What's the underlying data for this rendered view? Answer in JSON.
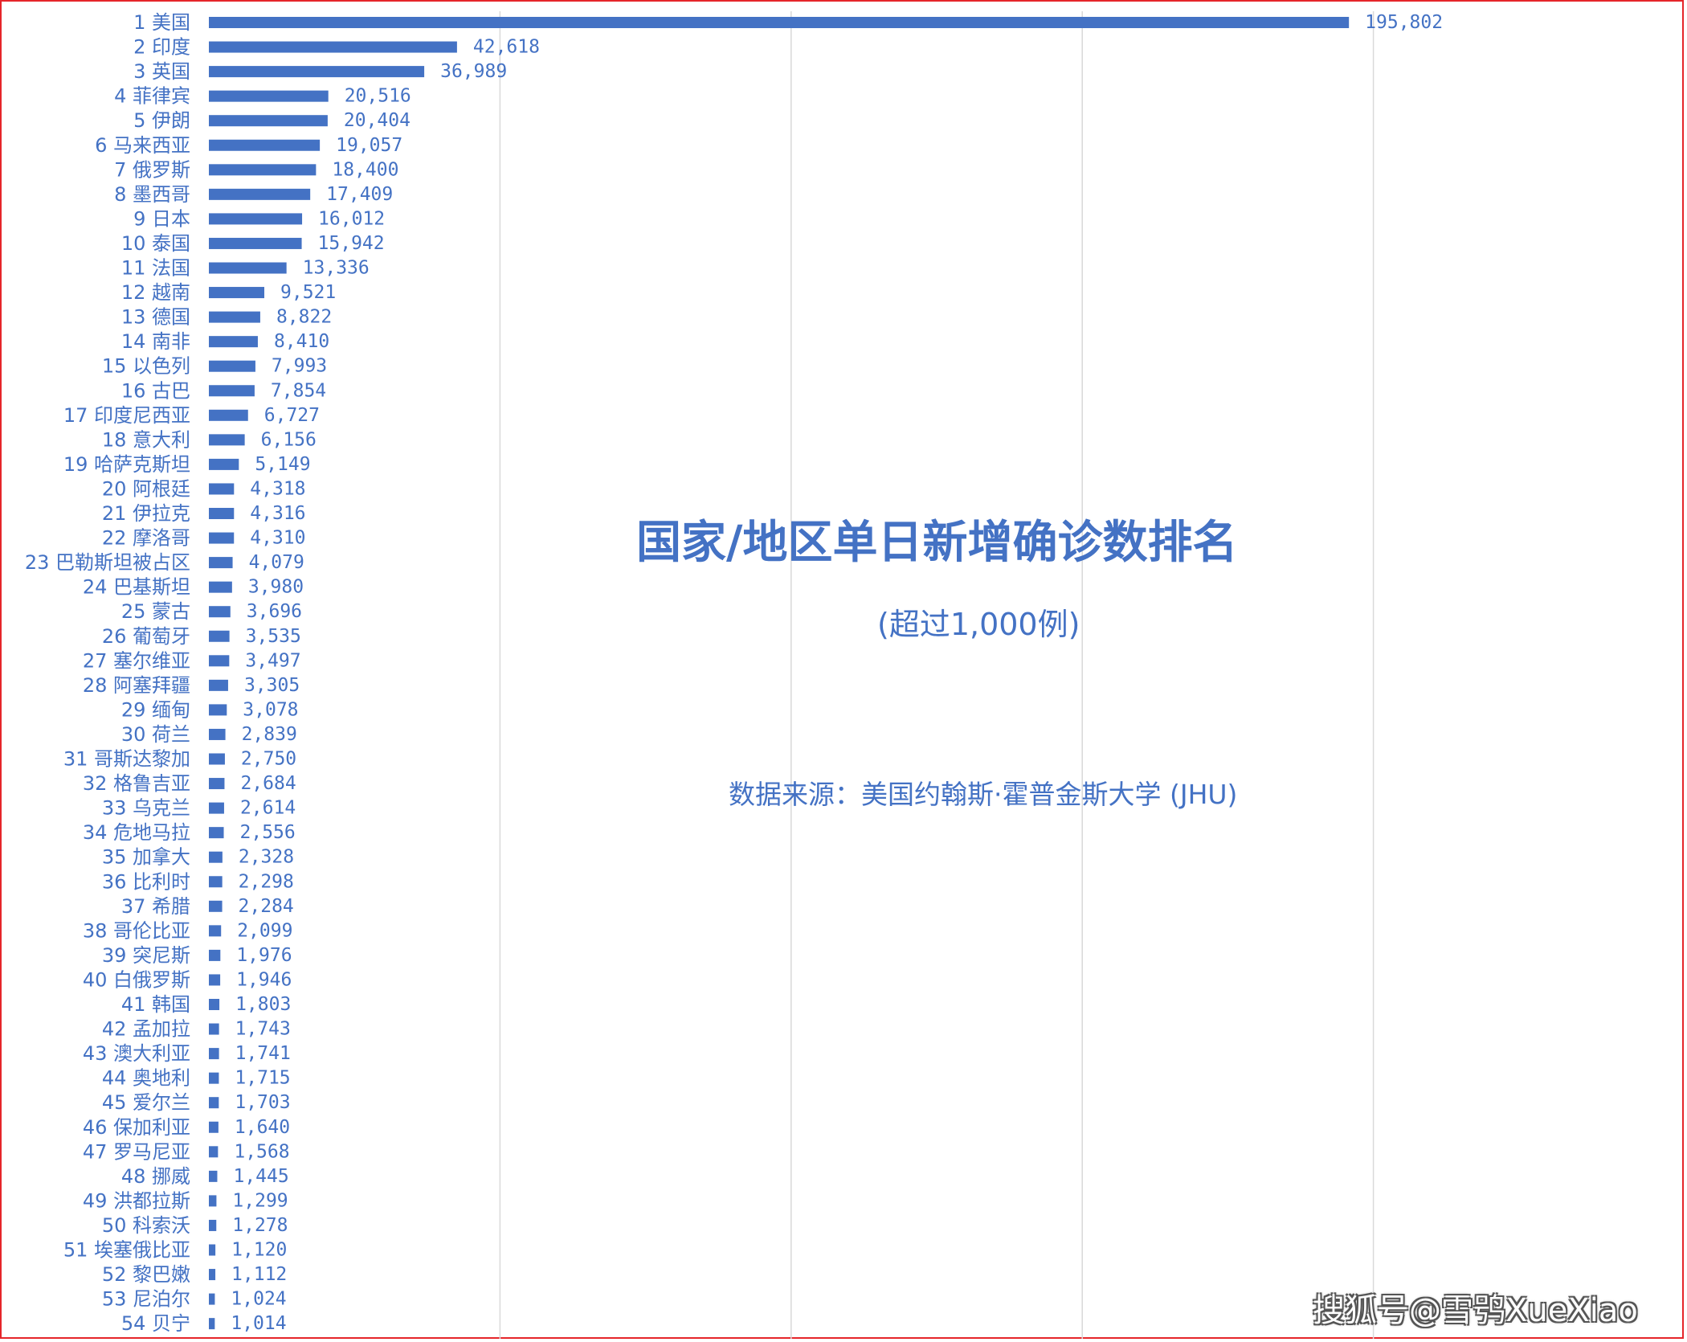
{
  "chart_data": {
    "type": "bar",
    "orientation": "horizontal",
    "title": "国家/地区单日新增确诊数排名",
    "subtitle": "(超过1,000例)",
    "source": "数据来源：美国约翰斯·霍普金斯大学 (JHU)",
    "xlim": [
      0,
      250000
    ],
    "gridlines_x": [
      50000,
      100000,
      150000,
      200000
    ],
    "grid": true,
    "legend": "none",
    "bar_color": "#4472c4",
    "label_color": "#4472c4",
    "categories": [
      "1 美国",
      "2 印度",
      "3 英国",
      "4 菲律宾",
      "5 伊朗",
      "6 马来西亚",
      "7 俄罗斯",
      "8 墨西哥",
      "9 日本",
      "10 泰国",
      "11 法国",
      "12 越南",
      "13 德国",
      "14 南非",
      "15 以色列",
      "16 古巴",
      "17 印度尼西亚",
      "18 意大利",
      "19 哈萨克斯坦",
      "20 阿根廷",
      "21 伊拉克",
      "22 摩洛哥",
      "23 巴勒斯坦被占区",
      "24 巴基斯坦",
      "25 蒙古",
      "26 葡萄牙",
      "27 塞尔维亚",
      "28 阿塞拜疆",
      "29 缅甸",
      "30 荷兰",
      "31 哥斯达黎加",
      "32 格鲁吉亚",
      "33 乌克兰",
      "34 危地马拉",
      "35 加拿大",
      "36 比利时",
      "37 希腊",
      "38 哥伦比亚",
      "39 突尼斯",
      "40 白俄罗斯",
      "41 韩国",
      "42 孟加拉",
      "43 澳大利亚",
      "44 奥地利",
      "45 爱尔兰",
      "46 保加利亚",
      "47 罗马尼亚",
      "48 挪威",
      "49 洪都拉斯",
      "50 科索沃",
      "51 埃塞俄比亚",
      "52 黎巴嫩",
      "53 尼泊尔",
      "54 贝宁"
    ],
    "values": [
      195802,
      42618,
      36989,
      20516,
      20404,
      19057,
      18400,
      17409,
      16012,
      15942,
      13336,
      9521,
      8822,
      8410,
      7993,
      7854,
      6727,
      6156,
      5149,
      4318,
      4316,
      4310,
      4079,
      3980,
      3696,
      3535,
      3497,
      3305,
      3078,
      2839,
      2750,
      2684,
      2614,
      2556,
      2328,
      2298,
      2284,
      2099,
      1976,
      1946,
      1803,
      1743,
      1741,
      1715,
      1703,
      1640,
      1568,
      1445,
      1299,
      1278,
      1120,
      1112,
      1024,
      1014
    ],
    "value_labels": [
      "195,802",
      "42,618",
      "36,989",
      "20,516",
      "20,404",
      "19,057",
      "18,400",
      "17,409",
      "16,012",
      "15,942",
      "13,336",
      "9,521",
      "8,822",
      "8,410",
      "7,993",
      "7,854",
      "6,727",
      "6,156",
      "5,149",
      "4,318",
      "4,316",
      "4,310",
      "4,079",
      "3,980",
      "3,696",
      "3,535",
      "3,497",
      "3,305",
      "3,078",
      "2,839",
      "2,750",
      "2,684",
      "2,614",
      "2,556",
      "2,328",
      "2,298",
      "2,284",
      "2,099",
      "1,976",
      "1,946",
      "1,803",
      "1,743",
      "1,741",
      "1,715",
      "1,703",
      "1,640",
      "1,568",
      "1,445",
      "1,299",
      "1,278",
      "1,120",
      "1,112",
      "1,024",
      "1,014"
    ]
  },
  "watermark": "搜狐号@雪鸮XueXiao",
  "colors": {
    "frame_border": "#e5252a",
    "gridline": "#d9d9d9"
  }
}
